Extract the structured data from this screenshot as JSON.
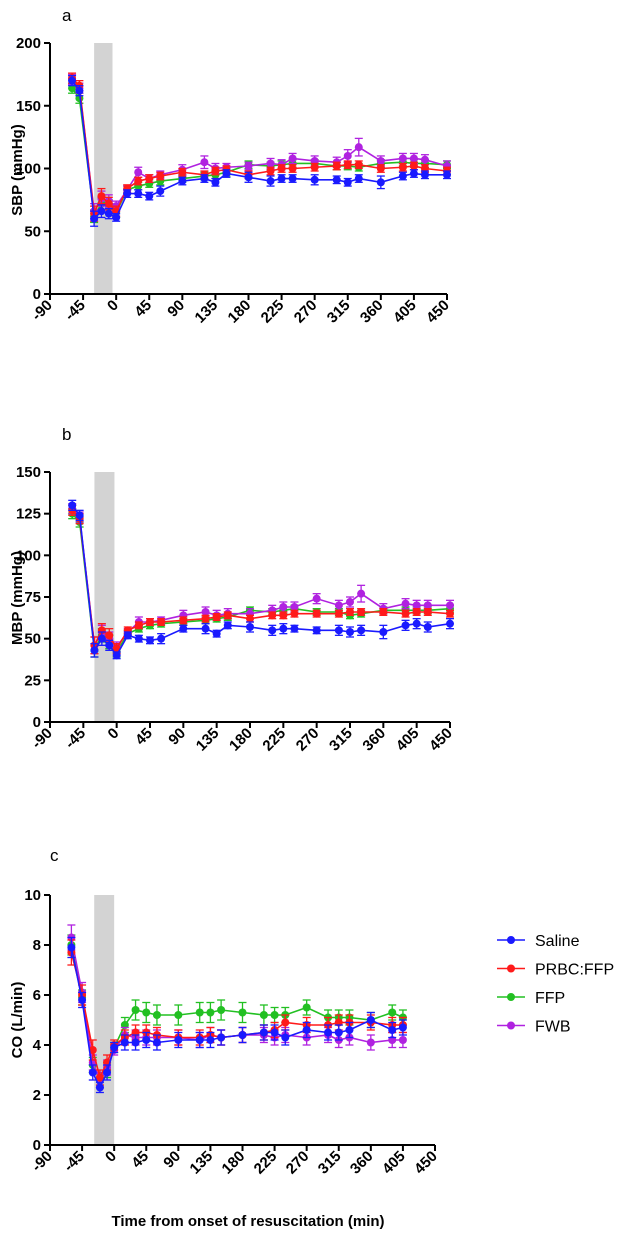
{
  "colors": {
    "Saline": "#1a1aff",
    "PRBC:FFP": "#ff1a1a",
    "FFP": "#22c022",
    "FWB": "#b022e0",
    "shade": "#d3d3d3"
  },
  "legend": {
    "items": [
      "Saline",
      "PRBC:FFP",
      "FFP",
      "FWB"
    ]
  },
  "x_axis_title": "Time from onset of resuscitation (min)",
  "chart_data": [
    {
      "panel": "a",
      "type": "line",
      "ylabel": "SBP (mmHg)",
      "xlabel": "",
      "xlim": [
        -90,
        450
      ],
      "ylim": [
        0,
        200
      ],
      "x_ticks": [
        -90,
        -45,
        0,
        45,
        90,
        135,
        180,
        225,
        270,
        315,
        360,
        405,
        450
      ],
      "y_ticks": [
        0,
        50,
        100,
        150,
        200
      ],
      "shaded_interval": [
        -30,
        -5
      ],
      "series": [
        {
          "name": "Saline",
          "x": [
            -60,
            -50,
            -30,
            -20,
            -10,
            0,
            15,
            30,
            45,
            60,
            90,
            120,
            135,
            150,
            180,
            210,
            225,
            240,
            270,
            300,
            315,
            330,
            360,
            390,
            405,
            420,
            450
          ],
          "y": [
            170,
            162,
            60,
            66,
            64,
            61,
            80,
            80,
            78,
            82,
            90,
            92,
            89,
            96,
            93,
            90,
            92,
            92,
            91,
            91,
            89,
            92,
            89,
            94,
            96,
            95,
            95
          ],
          "err": [
            4,
            4,
            6,
            5,
            4,
            3,
            3,
            3,
            3,
            4,
            3,
            3,
            3,
            3,
            4,
            4,
            3,
            3,
            4,
            3,
            3,
            3,
            5,
            3,
            3,
            3,
            3
          ]
        },
        {
          "name": "PRBC:FFP",
          "x": [
            -60,
            -50,
            -30,
            -20,
            -10,
            0,
            15,
            30,
            45,
            60,
            90,
            120,
            135,
            150,
            180,
            210,
            225,
            240,
            270,
            300,
            315,
            330,
            360,
            390,
            405,
            420,
            450
          ],
          "y": [
            172,
            166,
            64,
            78,
            72,
            66,
            84,
            90,
            92,
            94,
            97,
            95,
            98,
            99,
            95,
            98,
            100,
            100,
            101,
            102,
            103,
            103,
            100,
            101,
            102,
            100,
            98
          ],
          "err": [
            4,
            4,
            6,
            6,
            5,
            4,
            3,
            3,
            3,
            3,
            3,
            3,
            3,
            3,
            3,
            3,
            3,
            3,
            3,
            3,
            3,
            3,
            3,
            3,
            3,
            3,
            3
          ]
        },
        {
          "name": "FFP",
          "x": [
            -60,
            -50,
            -30,
            -20,
            -10,
            0,
            15,
            30,
            45,
            60,
            90,
            120,
            135,
            150,
            180,
            210,
            225,
            240,
            270,
            300,
            315,
            330,
            360,
            390,
            405,
            420,
            450
          ],
          "y": [
            164,
            156,
            62,
            72,
            70,
            65,
            83,
            86,
            88,
            90,
            92,
            94,
            95,
            97,
            103,
            102,
            103,
            104,
            104,
            102,
            102,
            101,
            104,
            105,
            104,
            104,
            103
          ],
          "err": [
            4,
            4,
            5,
            5,
            5,
            4,
            3,
            3,
            3,
            3,
            3,
            3,
            3,
            3,
            3,
            3,
            3,
            3,
            3,
            3,
            3,
            3,
            3,
            3,
            3,
            3,
            3
          ]
        },
        {
          "name": "FWB",
          "x": [
            -60,
            -50,
            -30,
            -20,
            -10,
            0,
            15,
            30,
            45,
            60,
            90,
            120,
            135,
            150,
            180,
            210,
            225,
            240,
            270,
            300,
            315,
            330,
            360,
            390,
            405,
            420,
            450
          ],
          "y": [
            171,
            164,
            66,
            76,
            74,
            70,
            83,
            97,
            92,
            95,
            99,
            105,
            100,
            101,
            102,
            104,
            103,
            108,
            106,
            105,
            110,
            117,
            106,
            108,
            108,
            107,
            102
          ],
          "err": [
            4,
            4,
            6,
            6,
            5,
            4,
            3,
            4,
            3,
            3,
            4,
            5,
            4,
            3,
            3,
            4,
            4,
            4,
            4,
            4,
            5,
            7,
            4,
            4,
            4,
            4,
            4
          ]
        }
      ]
    },
    {
      "panel": "b",
      "type": "line",
      "ylabel": "MBP (mmHg)",
      "xlabel": "",
      "xlim": [
        -90,
        450
      ],
      "ylim": [
        0,
        150
      ],
      "x_ticks": [
        -90,
        -45,
        0,
        45,
        90,
        135,
        180,
        225,
        270,
        315,
        360,
        405,
        450
      ],
      "y_ticks": [
        0,
        25,
        50,
        75,
        100,
        125,
        150
      ],
      "shaded_interval": [
        -30,
        -3
      ],
      "series": [
        {
          "name": "Saline",
          "x": [
            -60,
            -50,
            -30,
            -20,
            -10,
            0,
            15,
            30,
            45,
            60,
            90,
            120,
            135,
            150,
            180,
            210,
            225,
            240,
            270,
            300,
            315,
            330,
            360,
            390,
            405,
            420,
            450
          ],
          "y": [
            130,
            124,
            43,
            50,
            46,
            40,
            52,
            50,
            49,
            50,
            56,
            56,
            53,
            58,
            57,
            55,
            56,
            56,
            55,
            55,
            54,
            55,
            54,
            58,
            59,
            57,
            59
          ],
          "err": [
            3,
            3,
            4,
            4,
            3,
            2,
            2,
            2,
            2,
            3,
            2,
            3,
            2,
            2,
            3,
            3,
            3,
            2,
            2,
            3,
            3,
            3,
            4,
            3,
            3,
            3,
            3
          ]
        },
        {
          "name": "PRBC:FFP",
          "x": [
            -60,
            -50,
            -30,
            -20,
            -10,
            0,
            15,
            30,
            45,
            60,
            90,
            120,
            135,
            150,
            180,
            210,
            225,
            240,
            270,
            300,
            315,
            330,
            360,
            390,
            405,
            420,
            450
          ],
          "y": [
            127,
            122,
            46,
            55,
            52,
            44,
            55,
            58,
            60,
            60,
            61,
            62,
            63,
            64,
            62,
            64,
            64,
            65,
            65,
            65,
            66,
            66,
            66,
            65,
            66,
            66,
            65
          ],
          "err": [
            3,
            3,
            5,
            4,
            4,
            3,
            2,
            2,
            2,
            2,
            2,
            2,
            2,
            2,
            2,
            2,
            2,
            2,
            2,
            2,
            2,
            2,
            2,
            2,
            2,
            2,
            2
          ]
        },
        {
          "name": "FFP",
          "x": [
            -60,
            -50,
            -30,
            -20,
            -10,
            0,
            15,
            30,
            45,
            60,
            90,
            120,
            135,
            150,
            180,
            210,
            225,
            240,
            270,
            300,
            315,
            330,
            360,
            390,
            405,
            420,
            450
          ],
          "y": [
            125,
            120,
            43,
            52,
            48,
            42,
            53,
            56,
            58,
            59,
            60,
            61,
            62,
            63,
            67,
            66,
            67,
            68,
            66,
            66,
            64,
            65,
            67,
            67,
            67,
            67,
            68
          ],
          "err": [
            3,
            3,
            4,
            4,
            4,
            3,
            2,
            2,
            2,
            2,
            2,
            2,
            2,
            2,
            2,
            2,
            2,
            2,
            2,
            2,
            2,
            2,
            2,
            2,
            2,
            2,
            2
          ]
        },
        {
          "name": "FWB",
          "x": [
            -60,
            -50,
            -30,
            -20,
            -10,
            0,
            15,
            30,
            45,
            60,
            90,
            120,
            135,
            150,
            180,
            210,
            225,
            240,
            270,
            300,
            315,
            330,
            360,
            390,
            405,
            420,
            450
          ],
          "y": [
            128,
            123,
            46,
            54,
            50,
            45,
            54,
            60,
            60,
            61,
            64,
            66,
            64,
            65,
            65,
            67,
            69,
            69,
            74,
            70,
            72,
            77,
            68,
            71,
            70,
            70,
            70
          ],
          "err": [
            3,
            3,
            5,
            4,
            4,
            3,
            2,
            3,
            2,
            2,
            3,
            3,
            3,
            3,
            3,
            3,
            3,
            3,
            3,
            3,
            3,
            5,
            3,
            3,
            3,
            3,
            3
          ]
        }
      ]
    },
    {
      "panel": "c",
      "type": "line",
      "ylabel": "CO (L/min)",
      "xlabel": "Time from onset of resuscitation (min)",
      "xlim": [
        -90,
        450
      ],
      "ylim": [
        0,
        10
      ],
      "x_ticks": [
        -90,
        -45,
        0,
        45,
        90,
        135,
        180,
        225,
        270,
        315,
        360,
        405,
        450
      ],
      "y_ticks": [
        0,
        2,
        4,
        6,
        8,
        10
      ],
      "shaded_interval": [
        -28,
        0
      ],
      "series": [
        {
          "name": "Saline",
          "x": [
            -60,
            -45,
            -30,
            -20,
            -10,
            0,
            15,
            30,
            45,
            60,
            90,
            120,
            135,
            150,
            180,
            210,
            225,
            240,
            270,
            300,
            315,
            330,
            360,
            390,
            405
          ],
          "y": [
            7.9,
            5.8,
            2.9,
            2.3,
            2.9,
            3.9,
            4.1,
            4.1,
            4.2,
            4.1,
            4.2,
            4.2,
            4.2,
            4.3,
            4.4,
            4.5,
            4.5,
            4.3,
            4.6,
            4.5,
            4.5,
            4.6,
            5.0,
            4.6,
            4.7
          ],
          "err": [
            0.4,
            0.3,
            0.3,
            0.2,
            0.3,
            0.2,
            0.3,
            0.3,
            0.3,
            0.3,
            0.3,
            0.3,
            0.3,
            0.3,
            0.3,
            0.3,
            0.3,
            0.3,
            0.3,
            0.3,
            0.3,
            0.3,
            0.3,
            0.3,
            0.3
          ]
        },
        {
          "name": "PRBC:FFP",
          "x": [
            -60,
            -45,
            -30,
            -20,
            -10,
            0,
            15,
            30,
            45,
            60,
            90,
            120,
            135,
            150,
            180,
            210,
            225,
            240,
            270,
            300,
            315,
            330,
            360,
            390,
            405
          ],
          "y": [
            7.7,
            6.0,
            3.8,
            2.7,
            3.3,
            4.0,
            4.3,
            4.5,
            4.5,
            4.4,
            4.3,
            4.3,
            4.4,
            4.3,
            4.4,
            4.5,
            4.6,
            4.9,
            4.8,
            4.8,
            4.9,
            4.9,
            4.9,
            4.8,
            4.8
          ],
          "err": [
            0.5,
            0.4,
            0.4,
            0.3,
            0.3,
            0.2,
            0.3,
            0.3,
            0.3,
            0.3,
            0.3,
            0.3,
            0.3,
            0.3,
            0.3,
            0.3,
            0.3,
            0.3,
            0.3,
            0.3,
            0.3,
            0.3,
            0.3,
            0.3,
            0.3
          ]
        },
        {
          "name": "FFP",
          "x": [
            -60,
            -45,
            -30,
            -20,
            -10,
            0,
            15,
            30,
            45,
            60,
            90,
            120,
            135,
            150,
            180,
            210,
            225,
            240,
            270,
            300,
            315,
            330,
            360,
            390,
            405
          ],
          "y": [
            8.0,
            5.9,
            3.2,
            2.6,
            3.0,
            3.9,
            4.8,
            5.4,
            5.3,
            5.2,
            5.2,
            5.3,
            5.3,
            5.4,
            5.3,
            5.2,
            5.2,
            5.2,
            5.5,
            5.1,
            5.1,
            5.1,
            5.0,
            5.3,
            5.1
          ],
          "err": [
            0.4,
            0.3,
            0.3,
            0.3,
            0.3,
            0.2,
            0.3,
            0.4,
            0.4,
            0.4,
            0.4,
            0.4,
            0.4,
            0.4,
            0.4,
            0.4,
            0.3,
            0.3,
            0.3,
            0.3,
            0.3,
            0.3,
            0.3,
            0.3,
            0.3
          ]
        },
        {
          "name": "FWB",
          "x": [
            -60,
            -45,
            -30,
            -20,
            -10,
            0,
            15,
            30,
            45,
            60,
            90,
            120,
            135,
            150,
            180,
            210,
            225,
            240,
            270,
            300,
            315,
            330,
            360,
            390,
            405
          ],
          "y": [
            8.3,
            6.1,
            3.3,
            2.6,
            3.1,
            3.8,
            4.4,
            4.3,
            4.3,
            4.3,
            4.3,
            4.2,
            4.4,
            4.3,
            4.4,
            4.4,
            4.3,
            4.4,
            4.3,
            4.4,
            4.2,
            4.3,
            4.1,
            4.2,
            4.2
          ],
          "err": [
            0.5,
            0.4,
            0.3,
            0.3,
            0.3,
            0.2,
            0.3,
            0.3,
            0.3,
            0.3,
            0.3,
            0.3,
            0.3,
            0.3,
            0.3,
            0.3,
            0.3,
            0.3,
            0.3,
            0.3,
            0.3,
            0.3,
            0.3,
            0.3,
            0.3
          ]
        }
      ]
    }
  ]
}
